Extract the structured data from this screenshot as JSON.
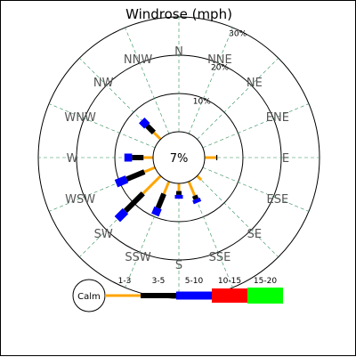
{
  "chart_data": {
    "type": "windrose",
    "title": "Windrose (mph)",
    "directions": [
      "N",
      "NNE",
      "NE",
      "ENE",
      "E",
      "ESE",
      "SE",
      "SSE",
      "S",
      "SSW",
      "SW",
      "WSW",
      "W",
      "WNW",
      "NW",
      "NNW"
    ],
    "rings": [
      {
        "value": 10,
        "label": "10%"
      },
      {
        "value": 20,
        "label": "20%"
      },
      {
        "value": 30,
        "label": "30%"
      }
    ],
    "calm": {
      "value": 7,
      "label": "7%",
      "legend_label": "Calm"
    },
    "bins": [
      {
        "label": "1-3",
        "color": "#ffa500"
      },
      {
        "label": "3-5",
        "color": "#000000"
      },
      {
        "label": "5-10",
        "color": "#0000ff"
      },
      {
        "label": "10-15",
        "color": "#ff0000"
      },
      {
        "label": "15-20",
        "color": "#00ff00"
      }
    ],
    "frequencies": [
      [
        0,
        0,
        0,
        0,
        0
      ],
      [
        0,
        0,
        0,
        0,
        0
      ],
      [
        0,
        0,
        0,
        0,
        0
      ],
      [
        0,
        0,
        0,
        0,
        0
      ],
      [
        3.0,
        0.3,
        0,
        0,
        0
      ],
      [
        0,
        0,
        0,
        0,
        0
      ],
      [
        1.5,
        0,
        0,
        0,
        0
      ],
      [
        4.0,
        1.0,
        1.0,
        0,
        0
      ],
      [
        2.0,
        1.0,
        1.0,
        0,
        0
      ],
      [
        3.5,
        4.0,
        2.0,
        0,
        0
      ],
      [
        6.5,
        6.5,
        3.0,
        0,
        0
      ],
      [
        3.0,
        5.0,
        3.0,
        0,
        0
      ],
      [
        2.5,
        3.0,
        2.0,
        0,
        0
      ],
      [
        0,
        0,
        0,
        0,
        0
      ],
      [
        2.5,
        2.5,
        2.0,
        0,
        0
      ],
      [
        0,
        0,
        0,
        0,
        0
      ]
    ]
  }
}
